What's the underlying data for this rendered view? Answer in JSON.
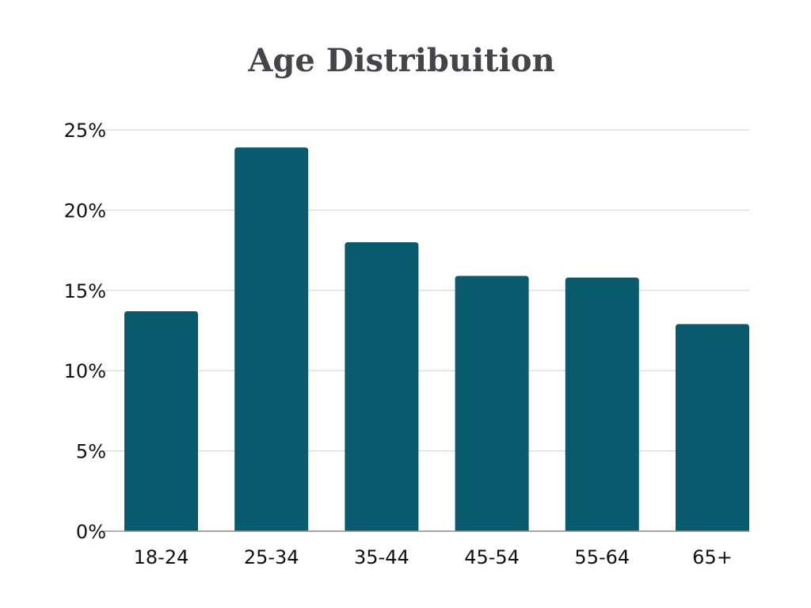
{
  "chart_data": {
    "type": "bar",
    "title": "Age Distribuition",
    "xlabel": "",
    "ylabel": "",
    "categories": [
      "18-24",
      "25-34",
      "35-44",
      "45-54",
      "55-64",
      "65+"
    ],
    "values": [
      13.7,
      23.9,
      18.0,
      15.9,
      15.8,
      12.9
    ],
    "ylim": [
      0,
      25
    ],
    "y_ticks": [
      0,
      5,
      10,
      15,
      20,
      25
    ],
    "y_tick_labels": [
      "0%",
      "5%",
      "10%",
      "15%",
      "20%",
      "25%"
    ],
    "grid": true,
    "legend": "none",
    "bar_color": "#095a6d"
  }
}
